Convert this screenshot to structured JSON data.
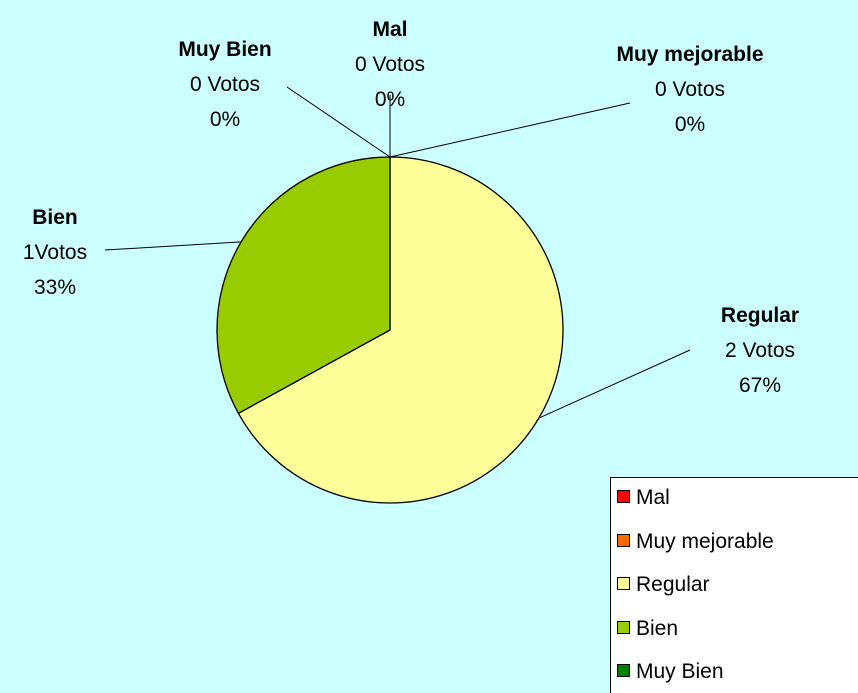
{
  "chart_data": {
    "type": "pie",
    "categories": [
      "Mal",
      "Muy mejorable",
      "Regular",
      "Bien",
      "Muy Bien"
    ],
    "values": [
      0,
      0,
      67,
      33,
      0
    ],
    "value_labels": [
      "0%",
      "0%",
      "67%",
      "33%",
      "0%"
    ],
    "vote_labels": [
      "0 Votos",
      "0 Votos",
      "2 Votos",
      "1Votos",
      "0 Votos"
    ],
    "colors": [
      "#ff0000",
      "#ff6600",
      "#ffff99",
      "#99cc00",
      "#008000"
    ],
    "legend": "bottom-right"
  }
}
